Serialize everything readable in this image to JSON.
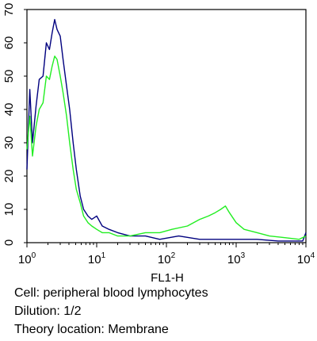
{
  "chart_data": {
    "type": "line",
    "title": "",
    "xlabel": "FL1-H",
    "ylabel": "",
    "x_scale": "log",
    "xlim": [
      1,
      10000
    ],
    "ylim": [
      0,
      70
    ],
    "x_ticks": [
      {
        "value": 1,
        "base": "10",
        "exp": "0"
      },
      {
        "value": 10,
        "base": "10",
        "exp": "1"
      },
      {
        "value": 100,
        "base": "10",
        "exp": "2"
      },
      {
        "value": 1000,
        "base": "10",
        "exp": "3"
      },
      {
        "value": 10000,
        "base": "10",
        "exp": "4"
      }
    ],
    "y_ticks": [
      0,
      10,
      20,
      30,
      40,
      50,
      60,
      70
    ],
    "grid": false,
    "legend": "none",
    "series": [
      {
        "color": "#00007f",
        "x": [
          1,
          1.1,
          1.2,
          1.35,
          1.5,
          1.7,
          1.9,
          2.1,
          2.3,
          2.5,
          2.7,
          3.0,
          3.3,
          3.7,
          4.1,
          4.6,
          5.1,
          5.8,
          6.5,
          7.5,
          8.5,
          10,
          12,
          15,
          20,
          30,
          50,
          80,
          150,
          300,
          600,
          1000,
          2000,
          4000,
          7000,
          9000,
          10000
        ],
        "y": [
          22,
          46,
          30,
          41,
          49,
          50,
          60,
          58,
          63,
          67,
          64,
          62,
          55,
          47,
          40,
          30,
          22,
          14,
          10,
          8,
          7,
          8,
          5,
          4,
          3,
          2,
          2,
          1,
          2,
          1,
          1,
          1,
          1,
          0.5,
          0.5,
          0.5,
          3
        ]
      },
      {
        "color": "#22ee22",
        "x": [
          1,
          1.1,
          1.2,
          1.35,
          1.5,
          1.7,
          1.9,
          2.1,
          2.3,
          2.5,
          2.7,
          3.0,
          3.3,
          3.7,
          4.1,
          4.6,
          5.1,
          5.8,
          6.5,
          7.5,
          8.5,
          10,
          12,
          15,
          20,
          30,
          50,
          80,
          120,
          200,
          300,
          400,
          500,
          600,
          700,
          800,
          1000,
          1300,
          2000,
          3000,
          5000,
          8000,
          10000
        ],
        "y": [
          28,
          38,
          26,
          35,
          40,
          42,
          50,
          49,
          53,
          56,
          55,
          50,
          45,
          38,
          30,
          22,
          16,
          12,
          8,
          6,
          5,
          4,
          3,
          3,
          2,
          2,
          3,
          3,
          4,
          5,
          7,
          8,
          9,
          10,
          11,
          9,
          6,
          4,
          3,
          2,
          1.5,
          1,
          2
        ]
      }
    ]
  },
  "caption": {
    "cell": "Cell: peripheral blood lymphocytes",
    "dilution": "Dilution: 1/2",
    "location": "Theory location: Membrane"
  }
}
